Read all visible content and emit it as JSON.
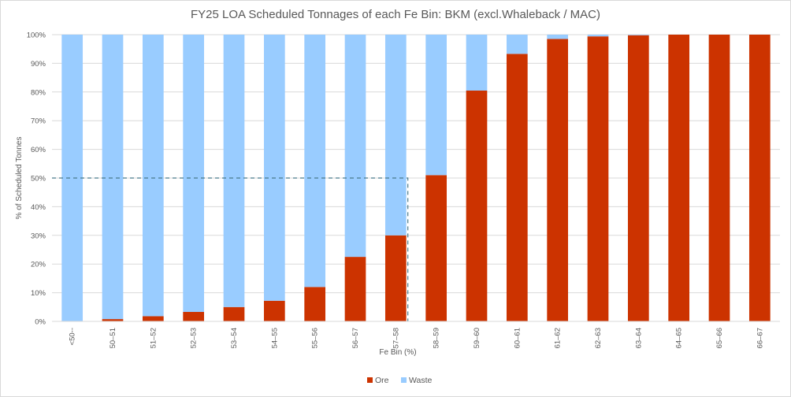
{
  "chart_data": {
    "type": "bar",
    "stacked": true,
    "percent_stacked": true,
    "title": "FY25 LOA Scheduled Tonnages of each Fe Bin: BKM (excl.Whaleback / MAC)",
    "xlabel": "Fe Bin (%)",
    "ylabel": "% of Scheduled Tonnes",
    "ylim": [
      0,
      100
    ],
    "yticks": [
      "0%",
      "10%",
      "20%",
      "30%",
      "40%",
      "50%",
      "60%",
      "70%",
      "80%",
      "90%",
      "100%"
    ],
    "categories": [
      "<50--",
      "50–51",
      "51–52",
      "52–53",
      "53–54",
      "54–55",
      "55–56",
      "56–57",
      "57–58",
      "58–59",
      "59–60",
      "60–61",
      "61–62",
      "62–63",
      "63–64",
      "64–65",
      "65–66",
      "66–67"
    ],
    "series": [
      {
        "name": "Ore",
        "color": "#cc3300",
        "values": [
          0,
          0.8,
          1.8,
          3.3,
          5,
          7.2,
          12,
          22.5,
          30,
          51,
          80.5,
          93.3,
          98.5,
          99.4,
          99.8,
          100,
          100,
          100
        ]
      },
      {
        "name": "Waste",
        "color": "#99ccff",
        "values": [
          100,
          99.2,
          98.2,
          96.7,
          95,
          92.8,
          88,
          77.5,
          70,
          49,
          19.5,
          6.7,
          1.5,
          0.6,
          0.2,
          0,
          0,
          0
        ]
      }
    ],
    "annotation": {
      "style": "dashed",
      "color": "#4a7a8c",
      "y": 50,
      "end_category": "57–58"
    },
    "grid": true,
    "legend": "bottom"
  }
}
